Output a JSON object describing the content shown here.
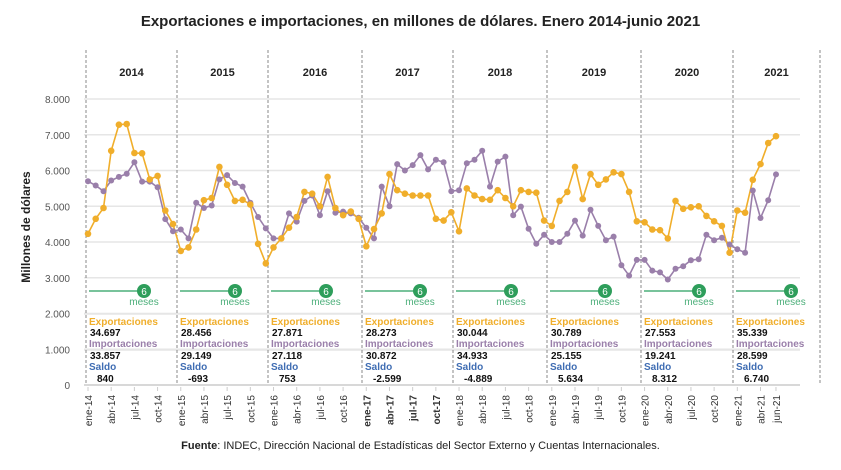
{
  "title": "Exportaciones e importaciones, en millones de dólares. Enero 2014-junio 2021",
  "source": {
    "label": "Fuente",
    "text": ": INDEC, Dirección Nacional de Estadísticas del Sector Externo y Cuentas Internacionales."
  },
  "colors": {
    "exportaciones": "#F0AE2B",
    "importaciones": "#9A7FAA",
    "saldo": "#3F6DB3",
    "meses_badge": "#2E9E5B",
    "meses_line": "#4CAF7A",
    "grid": "#E6E6E6",
    "divider": "#888888"
  },
  "summary_labels": {
    "exportaciones": "Exportaciones",
    "importaciones": "Importaciones",
    "saldo": "Saldo",
    "badge_number": "6",
    "badge_unit": "meses"
  },
  "years": [
    {
      "year": "2014",
      "exportaciones": "34.697",
      "importaciones": "33.857",
      "saldo": "840"
    },
    {
      "year": "2015",
      "exportaciones": "28.456",
      "importaciones": "29.149",
      "saldo": "-693"
    },
    {
      "year": "2016",
      "exportaciones": "27.871",
      "importaciones": "27.118",
      "saldo": "753"
    },
    {
      "year": "2017",
      "exportaciones": "28.273",
      "importaciones": "30.872",
      "saldo": "-2.599"
    },
    {
      "year": "2018",
      "exportaciones": "30.044",
      "importaciones": "34.933",
      "saldo": "-4.889"
    },
    {
      "year": "2019",
      "exportaciones": "30.789",
      "importaciones": "25.155",
      "saldo": "5.634"
    },
    {
      "year": "2020",
      "exportaciones": "27.553",
      "importaciones": "19.241",
      "saldo": "8.312"
    },
    {
      "year": "2021",
      "exportaciones": "35.339",
      "importaciones": "28.599",
      "saldo": "6.740"
    }
  ],
  "chart_data": {
    "type": "line",
    "title": "Exportaciones e importaciones, en millones de dólares. Enero 2014-junio 2021",
    "xlabel": "",
    "ylabel": "Millones de dólares",
    "ylim": [
      0,
      8000
    ],
    "yticks": [
      0,
      1000,
      2000,
      3000,
      4000,
      5000,
      6000,
      7000,
      8000
    ],
    "ytick_labels": [
      "0",
      "1.000",
      "2.000",
      "3.000",
      "4.000",
      "5.000",
      "6.000",
      "7.000",
      "8.000"
    ],
    "grid": true,
    "legend": "none",
    "x_tick_labels": [
      "ene-14",
      "abr-14",
      "jul-14",
      "oct-14",
      "ene-15",
      "abr-15",
      "jul-15",
      "oct-15",
      "ene-16",
      "abr-16",
      "jul-16",
      "oct-16",
      "ene-17",
      "abr-17",
      "jul-17",
      "oct-17",
      "ene-18",
      "abr-18",
      "jul-18",
      "oct-18",
      "ene-19",
      "abr-19",
      "jul-19",
      "oct-19",
      "ene-20",
      "abr-20",
      "jul-20",
      "oct-20",
      "ene-21",
      "abr-21",
      "jun-21"
    ],
    "x_tick_month_index": [
      0,
      3,
      6,
      9,
      12,
      15,
      18,
      21,
      24,
      27,
      30,
      33,
      36,
      39,
      42,
      45,
      48,
      51,
      54,
      57,
      60,
      63,
      66,
      69,
      72,
      75,
      78,
      81,
      84,
      87,
      89
    ],
    "bold_tick_labels": [
      "ene-17",
      "abr-17",
      "jul-17",
      "oct-17"
    ],
    "start": "2014-01",
    "end": "2021-06",
    "series": [
      {
        "name": "Exportaciones",
        "values": [
          4230,
          4650,
          4950,
          6550,
          7280,
          7300,
          6490,
          6480,
          5750,
          5850,
          4880,
          4500,
          3750,
          3850,
          4350,
          5170,
          5230,
          6100,
          5600,
          5150,
          5180,
          5050,
          3950,
          3400,
          3850,
          4100,
          4400,
          4700,
          5400,
          5350,
          5000,
          5820,
          4950,
          4750,
          4850,
          4650,
          3880,
          4360,
          4800,
          5900,
          5450,
          5350,
          5300,
          5300,
          5300,
          4650,
          4600,
          4830,
          4300,
          5500,
          5300,
          5200,
          5180,
          5450,
          5230,
          5000,
          5450,
          5400,
          5380,
          4600,
          4450,
          5150,
          5400,
          6100,
          5200,
          5900,
          5600,
          5750,
          5950,
          5900,
          5400,
          4580,
          4550,
          4350,
          4330,
          4100,
          5150,
          4930,
          4970,
          5000,
          4730,
          4580,
          4450,
          3700,
          4880,
          4820,
          5740,
          6180,
          6770,
          6960
        ]
      },
      {
        "name": "Importaciones",
        "values": [
          5700,
          5580,
          5420,
          5720,
          5820,
          5910,
          6230,
          5690,
          5690,
          5530,
          4640,
          4300,
          4350,
          4100,
          5100,
          4950,
          5020,
          5750,
          5870,
          5650,
          5550,
          5100,
          4700,
          4380,
          4100,
          4100,
          4800,
          4570,
          5150,
          5300,
          4750,
          5420,
          4820,
          4850,
          4800,
          4680,
          4400,
          4100,
          5550,
          5000,
          6180,
          6000,
          6150,
          6430,
          6030,
          6300,
          6230,
          5420,
          5450,
          6200,
          6300,
          6550,
          5550,
          6250,
          6390,
          4750,
          4990,
          4370,
          3950,
          4200,
          4000,
          4000,
          4230,
          4600,
          4180,
          4900,
          4450,
          4050,
          4150,
          3350,
          3060,
          3500,
          3500,
          3200,
          3150,
          2950,
          3250,
          3320,
          3490,
          3520,
          4200,
          4050,
          4120,
          3930,
          3800,
          3700,
          5440,
          4670,
          5170,
          5890
        ]
      }
    ]
  }
}
